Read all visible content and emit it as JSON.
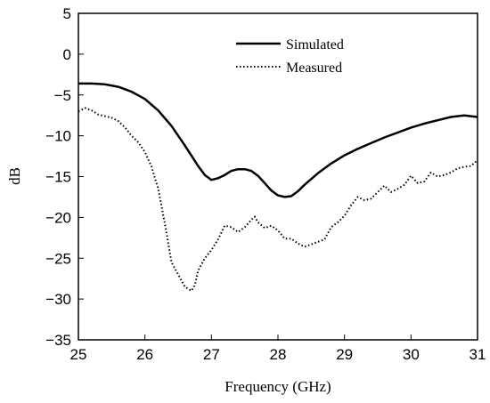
{
  "chart_data": {
    "type": "line",
    "xlabel": "Frequency (GHz)",
    "ylabel": "dB",
    "xlim": [
      25,
      31
    ],
    "ylim": [
      -35,
      5
    ],
    "xticks": [
      25,
      26,
      27,
      28,
      29,
      30,
      31
    ],
    "yticks": [
      5,
      0,
      -5,
      -10,
      -15,
      -20,
      -25,
      -30,
      -35
    ],
    "grid": false,
    "legend_position": "top-center",
    "series": [
      {
        "name": "Simulated",
        "style": "solid",
        "color": "#000000",
        "x": [
          25.0,
          25.2,
          25.4,
          25.6,
          25.8,
          26.0,
          26.2,
          26.4,
          26.6,
          26.8,
          26.9,
          27.0,
          27.1,
          27.2,
          27.3,
          27.4,
          27.5,
          27.6,
          27.7,
          27.8,
          27.9,
          28.0,
          28.1,
          28.2,
          28.3,
          28.4,
          28.6,
          28.8,
          29.0,
          29.2,
          29.4,
          29.6,
          29.8,
          30.0,
          30.2,
          30.4,
          30.6,
          30.8,
          31.0
        ],
        "y": [
          -3.6,
          -3.6,
          -3.7,
          -4.0,
          -4.6,
          -5.5,
          -6.9,
          -8.8,
          -11.2,
          -13.7,
          -14.8,
          -15.4,
          -15.2,
          -14.8,
          -14.3,
          -14.1,
          -14.1,
          -14.3,
          -14.9,
          -15.8,
          -16.7,
          -17.3,
          -17.5,
          -17.4,
          -16.8,
          -16.0,
          -14.6,
          -13.4,
          -12.4,
          -11.6,
          -10.9,
          -10.2,
          -9.6,
          -9.0,
          -8.5,
          -8.1,
          -7.7,
          -7.5,
          -7.7
        ]
      },
      {
        "name": "Measured",
        "style": "dotted",
        "color": "#000000",
        "x": [
          25.0,
          25.1,
          25.2,
          25.3,
          25.4,
          25.5,
          25.6,
          25.7,
          25.8,
          25.9,
          26.0,
          26.1,
          26.2,
          26.3,
          26.4,
          26.5,
          26.6,
          26.7,
          26.75,
          26.8,
          26.9,
          27.0,
          27.1,
          27.2,
          27.3,
          27.4,
          27.5,
          27.6,
          27.65,
          27.7,
          27.8,
          27.9,
          28.0,
          28.1,
          28.2,
          28.3,
          28.4,
          28.5,
          28.6,
          28.7,
          28.8,
          28.9,
          29.0,
          29.1,
          29.2,
          29.3,
          29.4,
          29.5,
          29.6,
          29.7,
          29.8,
          29.9,
          30.0,
          30.1,
          30.2,
          30.3,
          30.4,
          30.5,
          30.6,
          30.7,
          30.8,
          30.9,
          31.0
        ],
        "y": [
          -7.0,
          -6.6,
          -6.9,
          -7.4,
          -7.6,
          -7.8,
          -8.2,
          -9.0,
          -10.0,
          -10.8,
          -12.0,
          -13.8,
          -16.5,
          -20.8,
          -25.5,
          -27.0,
          -28.5,
          -29.0,
          -28.3,
          -26.5,
          -25.0,
          -24.0,
          -22.7,
          -21.0,
          -21.2,
          -21.8,
          -21.2,
          -20.3,
          -19.9,
          -20.6,
          -21.3,
          -21.0,
          -21.6,
          -22.6,
          -22.6,
          -23.2,
          -23.6,
          -23.3,
          -23.0,
          -22.7,
          -21.2,
          -20.6,
          -19.8,
          -18.5,
          -17.5,
          -17.9,
          -17.7,
          -16.9,
          -16.1,
          -16.9,
          -16.5,
          -16.0,
          -14.9,
          -15.8,
          -15.6,
          -14.5,
          -15.0,
          -14.8,
          -14.5,
          -14.0,
          -13.8,
          -13.7,
          -13.0
        ]
      }
    ]
  }
}
